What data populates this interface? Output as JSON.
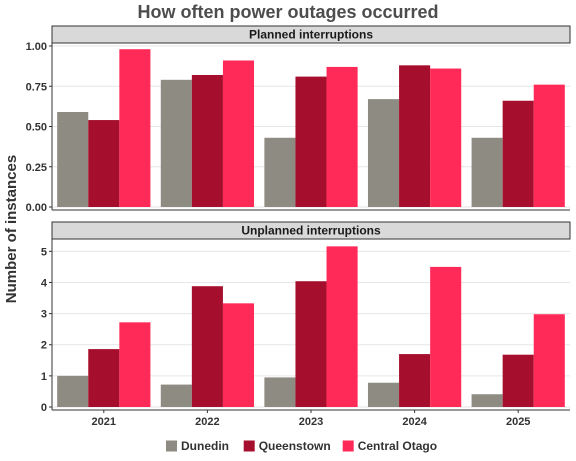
{
  "chart_data": {
    "type": "bar",
    "title": "How often power outages occurred",
    "ylabel": "Number of instances",
    "xlabel": "",
    "categories": [
      "2021",
      "2022",
      "2023",
      "2024",
      "2025"
    ],
    "legend": {
      "placement": "bottom",
      "entries": [
        "Dunedin",
        "Queenstown",
        "Central Otago"
      ]
    },
    "colors": {
      "Dunedin": "#8e8b82",
      "Queenstown": "#a50f2d",
      "Central Otago": "#ff2a58"
    },
    "grid": true,
    "panels": [
      {
        "title": "Planned interruptions",
        "ylim": [
          0,
          1.0
        ],
        "yticks": [
          "0.00",
          "0.25",
          "0.50",
          "0.75",
          "1.00"
        ],
        "series": [
          {
            "name": "Dunedin",
            "values": [
              0.59,
              0.79,
              0.43,
              0.67,
              0.43
            ]
          },
          {
            "name": "Queenstown",
            "values": [
              0.54,
              0.82,
              0.81,
              0.88,
              0.66
            ]
          },
          {
            "name": "Central Otago",
            "values": [
              0.98,
              0.91,
              0.87,
              0.86,
              0.76
            ]
          }
        ]
      },
      {
        "title": "Unplanned interruptions",
        "ylim": [
          0,
          5.3
        ],
        "yticks": [
          "0",
          "1",
          "2",
          "3",
          "4",
          "5"
        ],
        "series": [
          {
            "name": "Dunedin",
            "values": [
              1.0,
              0.72,
              0.95,
              0.78,
              0.41
            ]
          },
          {
            "name": "Queenstown",
            "values": [
              1.86,
              3.88,
              4.04,
              1.7,
              1.68
            ]
          },
          {
            "name": "Central Otago",
            "values": [
              2.72,
              3.33,
              5.16,
              4.5,
              2.98
            ]
          }
        ]
      }
    ]
  }
}
